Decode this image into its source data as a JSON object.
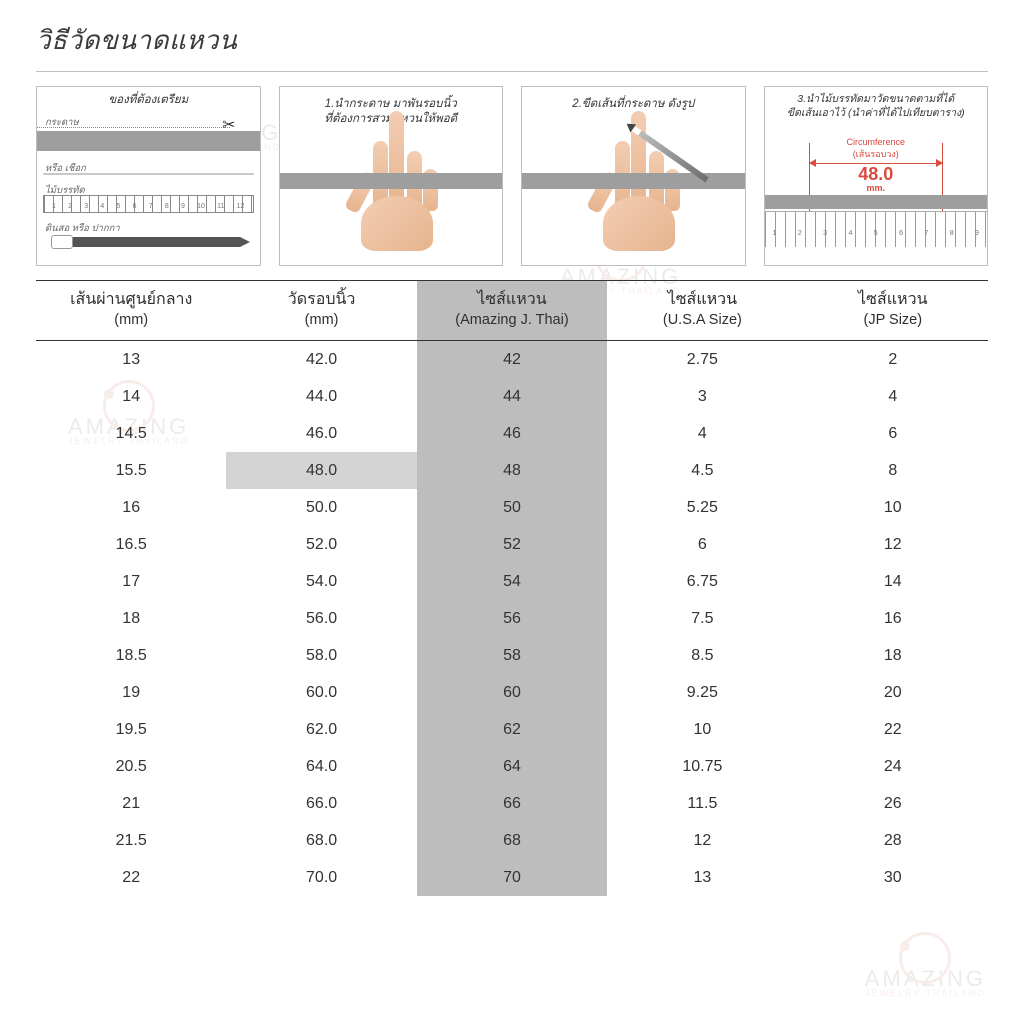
{
  "title": "วิธีวัดขนาดแหวน",
  "watermark": {
    "line1": "AMAZING",
    "line2": "JEWELRY THAILAND"
  },
  "steps": {
    "s1": {
      "caption": "ของที่ต้องเตรียม",
      "labels": {
        "paper": "กระดาษ",
        "or_rope": "หรือ เชือก",
        "ruler": "ไม้บรรทัด",
        "pencil": "ดินสอ หรือ ปากกา"
      },
      "ruler_marks": [
        "1",
        "2",
        "3",
        "4",
        "5",
        "6",
        "7",
        "8",
        "9",
        "10",
        "11",
        "12"
      ]
    },
    "s2": {
      "caption": "1.นำกระดาษ มาพันรอบนิ้ว\nที่ต้องการสวมแหวนให้พอดี"
    },
    "s3": {
      "caption": "2.ขีดเส้นที่กระดาษ ดังรูป"
    },
    "s4": {
      "caption": "3.นำไม้บรรทัดมาวัดขนาดตามที่ได้\nขีดเส้นเอาไว้ (นำค่าที่ได้ไปเทียบตาราง)",
      "dim_label": "Circumference\n(เส้นรอบวง)",
      "dim_value": "48.0",
      "dim_unit": "mm.",
      "ruler_marks": [
        "1",
        "2",
        "3",
        "4",
        "5",
        "6",
        "7",
        "8",
        "9"
      ]
    }
  },
  "table": {
    "columns": [
      {
        "line1": "เส้นผ่านศูนย์กลาง",
        "line2": "(mm)"
      },
      {
        "line1": "วัดรอบนิ้ว",
        "line2": "(mm)"
      },
      {
        "line1": "ไซส์แหวน",
        "line2": "(Amazing J. Thai)"
      },
      {
        "line1": "ไซส์แหวน",
        "line2": "(U.S.A Size)"
      },
      {
        "line1": "ไซส์แหวน",
        "line2": "(JP Size)"
      }
    ],
    "highlight_row_index": 3,
    "highlight_col_index": 2,
    "rows": [
      [
        "13",
        "42.0",
        "42",
        "2.75",
        "2"
      ],
      [
        "14",
        "44.0",
        "44",
        "3",
        "4"
      ],
      [
        "14.5",
        "46.0",
        "46",
        "4",
        "6"
      ],
      [
        "15.5",
        "48.0",
        "48",
        "4.5",
        "8"
      ],
      [
        "16",
        "50.0",
        "50",
        "5.25",
        "10"
      ],
      [
        "16.5",
        "52.0",
        "52",
        "6",
        "12"
      ],
      [
        "17",
        "54.0",
        "54",
        "6.75",
        "14"
      ],
      [
        "18",
        "56.0",
        "56",
        "7.5",
        "16"
      ],
      [
        "18.5",
        "58.0",
        "58",
        "8.5",
        "18"
      ],
      [
        "19",
        "60.0",
        "60",
        "9.25",
        "20"
      ],
      [
        "19.5",
        "62.0",
        "62",
        "10",
        "22"
      ],
      [
        "20.5",
        "64.0",
        "64",
        "10.75",
        "24"
      ],
      [
        "21",
        "66.0",
        "66",
        "11.5",
        "26"
      ],
      [
        "21.5",
        "68.0",
        "68",
        "12",
        "28"
      ],
      [
        "22",
        "70.0",
        "70",
        "13",
        "30"
      ]
    ]
  },
  "colors": {
    "bg": "#ffffff",
    "text": "#333333",
    "border": "#bfbfbf",
    "hr_dark": "#333333",
    "strip": "#9e9e9e",
    "col_highlight": "#bdbdbd",
    "row_highlight": "#d4d4d4",
    "accent_red": "#d94a3f",
    "skin1": "#f3cdb2",
    "skin2": "#e6b48e",
    "wm_grey": "#888888",
    "wm_coral": "#d8927a"
  }
}
